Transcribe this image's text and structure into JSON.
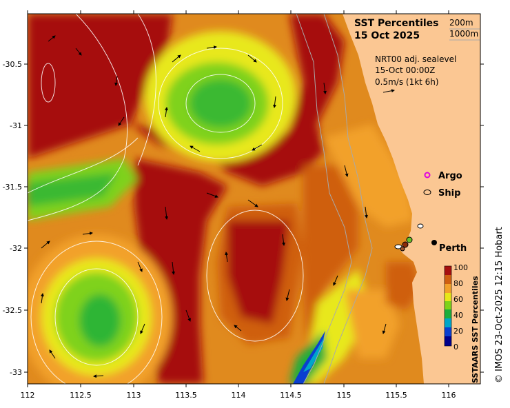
{
  "map": {
    "title": "SST Percentiles",
    "date": "15 Oct 2025",
    "isobaths": [
      "200m",
      "1000m"
    ],
    "product": "NRT00 adj. sealevel",
    "datetime": "15-Oct 00:00Z",
    "vector_scale": "0.5m/s (1kt 6h)",
    "legend": {
      "argo": "Argo",
      "ship": "Ship"
    },
    "city": "Perth",
    "credit": "© IMOS 23-Oct-2025 12:15 Hobart",
    "colorbar": {
      "label": "SSTAARS SST Percentiles",
      "ticks": [
        "0",
        "20",
        "40",
        "60",
        "80",
        "100"
      ],
      "colors": [
        "#00008b",
        "#0a3fd0",
        "#00a6c8",
        "#1cae3c",
        "#7fd21a",
        "#e8e81a",
        "#f2a12a",
        "#cf5f10",
        "#a60f0f"
      ]
    },
    "x_ticks": [
      "112",
      "112.5",
      "113",
      "113.5",
      "114",
      "114.5",
      "115",
      "115.5",
      "116"
    ],
    "y_ticks": [
      "-30.5",
      "-31",
      "-31.5",
      "-32",
      "-32.5",
      "-33"
    ],
    "colors": {
      "land": "#fbc793",
      "hot": "#a60f0f",
      "warm": "#cf5f10",
      "mid": "#f2a12a",
      "yellow": "#e8e81a",
      "lime": "#7fd21a",
      "green": "#1cae3c"
    }
  }
}
